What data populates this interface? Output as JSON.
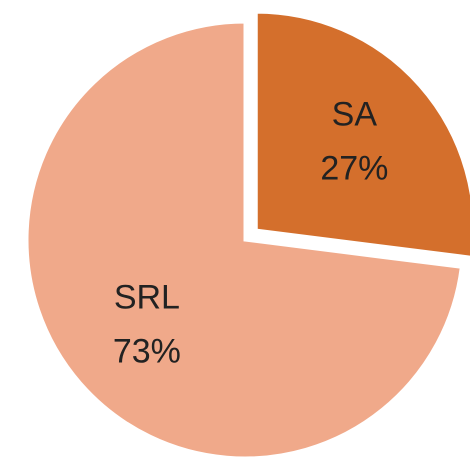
{
  "chart_data": {
    "type": "pie",
    "categories": [
      "SA",
      "SRL"
    ],
    "values": [
      27,
      73
    ],
    "value_labels": [
      "27%",
      "73%"
    ],
    "colors": [
      "#d46f2c",
      "#f0a98a"
    ]
  }
}
